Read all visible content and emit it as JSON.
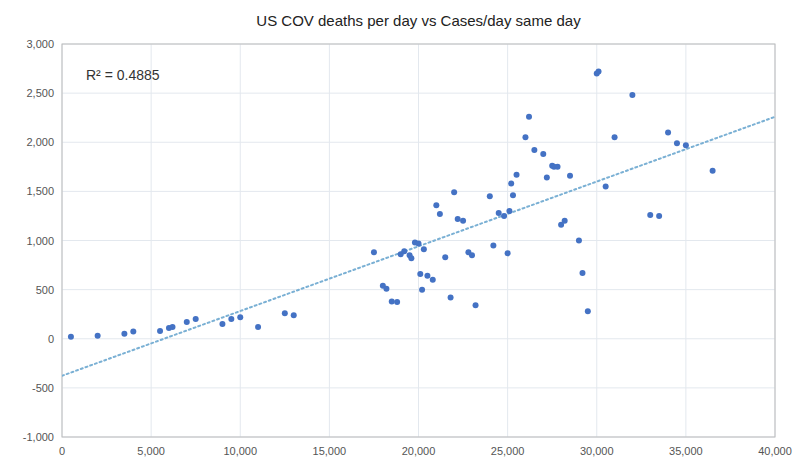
{
  "chart_data": {
    "type": "scatter",
    "title": "US COV deaths per day vs Cases/day same day",
    "annotation": "R² = 0.4885",
    "color": "#4472C4",
    "marker": "circle",
    "grid": true,
    "xlim": [
      0,
      40000
    ],
    "ylim": [
      -1000,
      3000
    ],
    "xticks": [
      0,
      {
        "value": 5000,
        "label": "5,000"
      },
      {
        "value": 10000,
        "label": "10,000"
      },
      {
        "value": 15000,
        "label": "15,000"
      },
      {
        "value": 20000,
        "label": "20,000"
      },
      {
        "value": 25000,
        "label": "25,000"
      },
      {
        "value": 30000,
        "label": "30,000"
      },
      {
        "value": 35000,
        "label": "35,000"
      },
      {
        "value": 40000,
        "label": "40,000"
      }
    ],
    "yticks": [
      {
        "value": -1000,
        "label": "-1,000"
      },
      -500,
      0,
      500,
      {
        "value": 1000,
        "label": "1,000"
      },
      {
        "value": 1500,
        "label": "1,500"
      },
      {
        "value": 2000,
        "label": "2,000"
      },
      {
        "value": 2500,
        "label": "2,500"
      },
      {
        "value": 3000,
        "label": "3,000"
      }
    ],
    "x": [
      500,
      2000,
      3500,
      4000,
      5500,
      6000,
      6200,
      7000,
      7500,
      9000,
      9500,
      10000,
      11000,
      12500,
      13000,
      17500,
      18000,
      18200,
      18500,
      18800,
      19000,
      19200,
      19500,
      19600,
      19800,
      20000,
      20100,
      20200,
      20300,
      20500,
      20800,
      21000,
      21200,
      21500,
      21800,
      22000,
      22200,
      22500,
      22800,
      23000,
      23200,
      24000,
      24200,
      24500,
      24800,
      25000,
      25100,
      25200,
      25300,
      25500,
      26000,
      26200,
      26500,
      27000,
      27200,
      27500,
      27600,
      27800,
      28000,
      28200,
      28500,
      29000,
      29200,
      29500,
      30000,
      30100,
      30500,
      31000,
      32000,
      33000,
      33500,
      34000,
      34500,
      35000,
      36500
    ],
    "values": [
      20,
      30,
      50,
      75,
      80,
      110,
      120,
      170,
      200,
      150,
      200,
      220,
      120,
      260,
      240,
      880,
      540,
      510,
      380,
      375,
      860,
      890,
      850,
      820,
      980,
      970,
      660,
      500,
      910,
      640,
      600,
      1360,
      1270,
      830,
      420,
      1490,
      1220,
      1200,
      880,
      850,
      340,
      1450,
      950,
      1280,
      1250,
      870,
      1300,
      1580,
      1460,
      1670,
      2050,
      2260,
      1920,
      1880,
      1640,
      1760,
      1750,
      1750,
      1160,
      1200,
      1660,
      1000,
      670,
      280,
      2700,
      2720,
      1550,
      2050,
      2480,
      1260,
      1250,
      2100,
      1990,
      1970,
      1710
    ],
    "trendline": {
      "type": "line",
      "x": [
        0,
        40000
      ],
      "values": [
        -377.0887,
        2258.9829
      ],
      "color": "#7ab0d4",
      "line_style": "dotted"
    }
  }
}
